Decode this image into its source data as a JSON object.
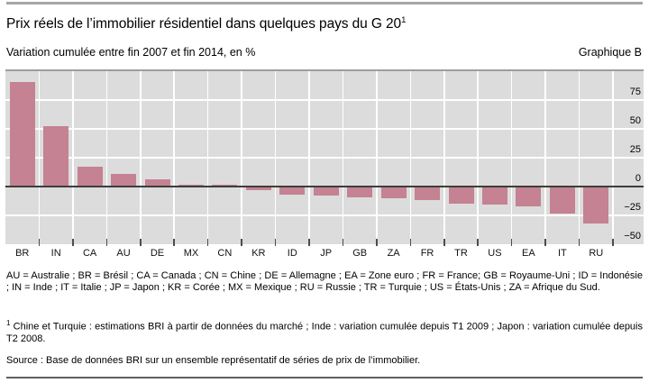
{
  "header": {
    "title": "Prix réels de l’immobilier résidentiel dans quelques pays du G 20",
    "title_sup": "1",
    "subtitle": "Variation cumulée entre fin 2007 et fin 2014, en %",
    "graph_label": "Graphique B"
  },
  "chart_data": {
    "type": "bar",
    "title": "Prix réels de l’immobilier résidentiel dans quelques pays du G 20",
    "subtitle": "Variation cumulée entre fin 2007 et fin 2014, en %",
    "unit": "%",
    "categories": [
      "BR",
      "IN",
      "CA",
      "AU",
      "DE",
      "MX",
      "CN",
      "KR",
      "ID",
      "JP",
      "GB",
      "ZA",
      "FR",
      "TR",
      "US",
      "EA",
      "IT",
      "RU"
    ],
    "values": [
      91,
      52,
      17,
      11,
      6,
      1.5,
      1.5,
      -3.5,
      -7,
      -7.5,
      -9,
      -10.5,
      -12,
      -14.5,
      -16,
      -17,
      -23.5,
      -32
    ],
    "ylim": [
      -50,
      100
    ],
    "yticks": [
      75,
      50,
      25,
      0,
      -25,
      -50
    ],
    "ytick_labels": [
      "75",
      "50",
      "25",
      "0",
      "−25",
      "−50"
    ],
    "grid": true,
    "legend_position": "none",
    "colors": {
      "bar": "#c48292",
      "plot_bg": "#dcdcdc",
      "gridline": "#ffffff",
      "zero_line": "#3d3d3d",
      "tick": "#4d4d4d",
      "rule": "#a6a6a6"
    }
  },
  "footer": {
    "legend": "AU = Australie ; BR = Brésil ; CA = Canada ; CN = Chine ; DE = Allemagne ; EA = Zone euro ; FR = France; GB = Royaume-Uni ; ID = Indonésie ; IN = Inde ; IT = Italie ; JP = Japon ; KR = Corée ; MX = Mexique ; RU = Russie ; TR = Turquie ; US = États-Unis ; ZA = Afrique du Sud.",
    "note_sup": "1",
    "note": "  Chine et Turquie : estimations BRI à partir de données du marché ; Inde : variation cumulée depuis T1 2009 ; Japon : variation cumulée depuis T2 2008.",
    "source": "Source : Base de données BRI sur un ensemble représentatif de séries de prix de l’immobilier."
  }
}
